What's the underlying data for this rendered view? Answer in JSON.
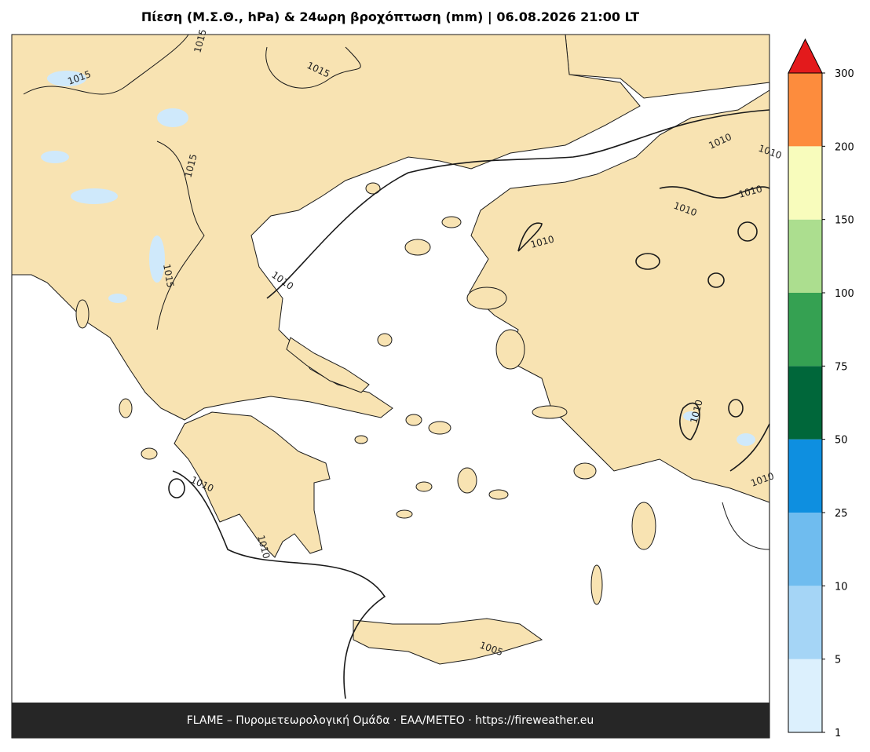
{
  "title": "Πίεση (Μ.Σ.Θ., hPa) & 24ωρη βροχόπτωση (mm)  |  06.08.2026 21:00 LT",
  "footer": "FLAME – Πυρομετεωρολογική Ομάδα · ΕΑΑ/METEO · https://fireweather.eu",
  "contour_labels": [
    "1015",
    "1015",
    "1015",
    "1015",
    "1015",
    "1010",
    "1010",
    "1010",
    "1010",
    "1010",
    "1010",
    "1010",
    "1010",
    "1010",
    "1010",
    "1005"
  ],
  "colorbar": {
    "ticks": [
      1,
      5,
      10,
      25,
      50,
      75,
      100,
      150,
      200,
      300
    ],
    "colors": [
      "#dcf0fd",
      "#a5d5f6",
      "#6fbcef",
      "#0e8fe0",
      "#00673a",
      "#35a152",
      "#acde8f",
      "#f8fcbc",
      "#fd8c3d"
    ],
    "extend_color": "#e31a1c"
  }
}
